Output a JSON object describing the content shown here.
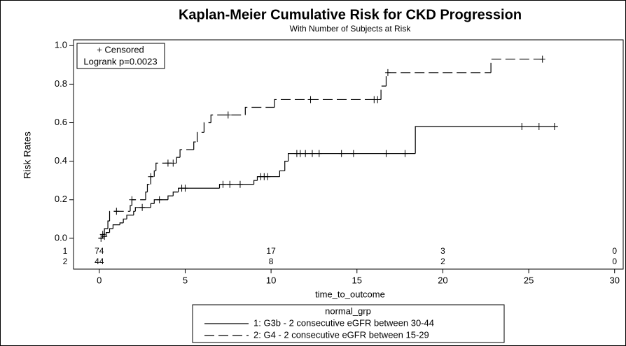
{
  "chart_data": {
    "type": "step",
    "title": "Kaplan-Meier Cumulative Risk for CKD Progression",
    "subtitle": "With Number of Subjects at Risk",
    "x_label": "time_to_outcome",
    "y_label": "Risk Rates",
    "annotations": [
      "+ Censored",
      "Logrank p=0.0023"
    ],
    "legend_title": "normal_grp",
    "xlim": [
      -1.5,
      30.5
    ],
    "xticks": [
      0,
      5,
      10,
      15,
      20,
      25,
      30
    ],
    "ylim": [
      -0.16,
      1.03
    ],
    "yticks": [
      {
        "value": 0,
        "label": "0.0"
      },
      0.2,
      0.4,
      0.6,
      0.8,
      {
        "value": 1,
        "label": "1.0"
      }
    ],
    "series": [
      {
        "name": "1: G3b - 2 consecutive eGFR between 30-44",
        "color": "#000000",
        "style": "solid",
        "x": [
          0,
          0.2,
          0.4,
          0.6,
          0.8,
          1.2,
          1.4,
          1.6,
          2.0,
          2.1,
          3.0,
          3.2,
          4.0,
          4.3,
          4.6,
          7.0,
          9.0,
          9.2,
          10.5,
          10.8,
          11.0,
          18.4,
          26.7
        ],
        "values": [
          0,
          0.01,
          0.03,
          0.05,
          0.07,
          0.08,
          0.1,
          0.12,
          0.14,
          0.16,
          0.18,
          0.2,
          0.22,
          0.24,
          0.26,
          0.28,
          0.3,
          0.32,
          0.35,
          0.4,
          0.44,
          0.58,
          0.58
        ],
        "censor_x": [
          0.1,
          0.3,
          2.5,
          3.5,
          4.8,
          5.0,
          7.2,
          7.6,
          8.2,
          9.4,
          9.6,
          9.8,
          11.5,
          11.7,
          12.0,
          12.4,
          12.8,
          14.1,
          14.8,
          16.7,
          17.8,
          24.6,
          25.6,
          26.5
        ],
        "censor_values": [
          0,
          0.01,
          0.16,
          0.2,
          0.26,
          0.26,
          0.28,
          0.28,
          0.28,
          0.32,
          0.32,
          0.32,
          0.44,
          0.44,
          0.44,
          0.44,
          0.44,
          0.44,
          0.44,
          0.44,
          0.44,
          0.58,
          0.58,
          0.58
        ]
      },
      {
        "name": "2: G4 - 2 consecutive eGFR between 15-29",
        "color": "#000000",
        "style": "dashed",
        "x": [
          0,
          0.2,
          0.3,
          0.5,
          0.6,
          1.8,
          1.9,
          2.7,
          2.8,
          3.0,
          3.2,
          3.3,
          4.5,
          4.7,
          5.5,
          5.7,
          6.1,
          6.5,
          8.5,
          10.2,
          16.4,
          16.7,
          22.8,
          25.8
        ],
        "values": [
          0,
          0.02,
          0.05,
          0.09,
          0.14,
          0.17,
          0.2,
          0.24,
          0.28,
          0.32,
          0.35,
          0.39,
          0.42,
          0.46,
          0.5,
          0.55,
          0.6,
          0.64,
          0.68,
          0.72,
          0.79,
          0.86,
          0.93,
          0.93
        ],
        "censor_x": [
          0.2,
          1.0,
          1.9,
          3.0,
          4.0,
          4.3,
          7.5,
          12.3,
          16.0,
          16.2,
          16.8,
          25.8
        ],
        "censor_values": [
          0.02,
          0.14,
          0.2,
          0.32,
          0.39,
          0.39,
          0.64,
          0.72,
          0.72,
          0.72,
          0.86,
          0.93
        ]
      }
    ],
    "at_risk": {
      "groups": [
        "1",
        "2"
      ],
      "times": [
        0,
        10,
        20,
        30
      ],
      "counts": [
        [
          74,
          17,
          3,
          0
        ],
        [
          44,
          8,
          2,
          0
        ]
      ]
    }
  }
}
